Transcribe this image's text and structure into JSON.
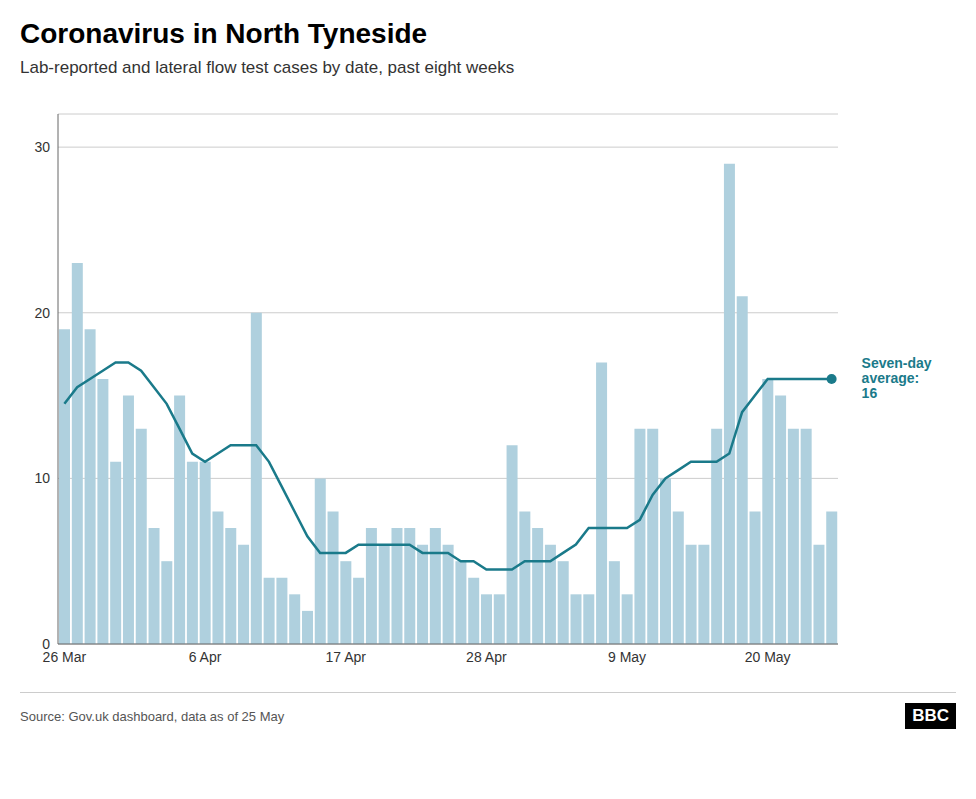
{
  "chart_data": {
    "type": "bar",
    "title": "Coronavirus in North Tyneside",
    "subtitle": "Lab-reported and lateral flow test cases by date, past eight weeks",
    "source": "Source: Gov.uk dashboard, data as of 25 May",
    "logo": "BBC",
    "annotation": "Seven-day\naverage:\n16",
    "categories": [
      "26 Mar",
      null,
      null,
      null,
      null,
      null,
      null,
      null,
      null,
      null,
      null,
      "6 Apr",
      null,
      null,
      null,
      null,
      null,
      null,
      null,
      null,
      null,
      null,
      "17 Apr",
      null,
      null,
      null,
      null,
      null,
      null,
      null,
      null,
      null,
      null,
      "28 Apr",
      null,
      null,
      null,
      null,
      null,
      null,
      null,
      null,
      null,
      null,
      "9 May",
      null,
      null,
      null,
      null,
      null,
      null,
      null,
      null,
      null,
      null,
      "20 May",
      null,
      null,
      null,
      null,
      null
    ],
    "series": [
      {
        "type": "bar",
        "color": "#afd0de",
        "values": [
          19,
          23,
          19,
          16,
          11,
          15,
          13,
          7,
          5,
          15,
          11,
          11,
          8,
          7,
          6,
          20,
          4,
          4,
          3,
          2,
          10,
          8,
          5,
          4,
          7,
          6,
          7,
          7,
          6,
          7,
          6,
          5,
          4,
          3,
          3,
          12,
          8,
          7,
          6,
          5,
          3,
          3,
          17,
          5,
          3,
          13,
          13,
          10,
          8,
          6,
          6,
          13,
          29,
          21,
          8,
          16,
          15,
          13,
          13,
          6,
          8
        ]
      },
      {
        "type": "line",
        "color": "#1a7a8a",
        "values": [
          14.5,
          15.5,
          16.0,
          16.5,
          17.0,
          17.0,
          16.5,
          15.5,
          14.5,
          13.0,
          11.5,
          11.0,
          11.5,
          12.0,
          12.0,
          12.0,
          11.0,
          9.5,
          8.0,
          6.5,
          5.5,
          5.5,
          5.5,
          6.0,
          6.0,
          6.0,
          6.0,
          6.0,
          5.5,
          5.5,
          5.5,
          5.0,
          5.0,
          4.5,
          4.5,
          4.5,
          5.0,
          5.0,
          5.0,
          5.5,
          6.0,
          7.0,
          7.0,
          7.0,
          7.0,
          7.5,
          9.0,
          10.0,
          10.5,
          11.0,
          11.0,
          11.0,
          11.5,
          14.0,
          15.0,
          16.0,
          16.0,
          16.0,
          16.0,
          16.0,
          16.0
        ]
      }
    ],
    "ylim": [
      0,
      32
    ],
    "yticks": [
      0,
      10,
      20,
      30
    ],
    "grid": true
  }
}
